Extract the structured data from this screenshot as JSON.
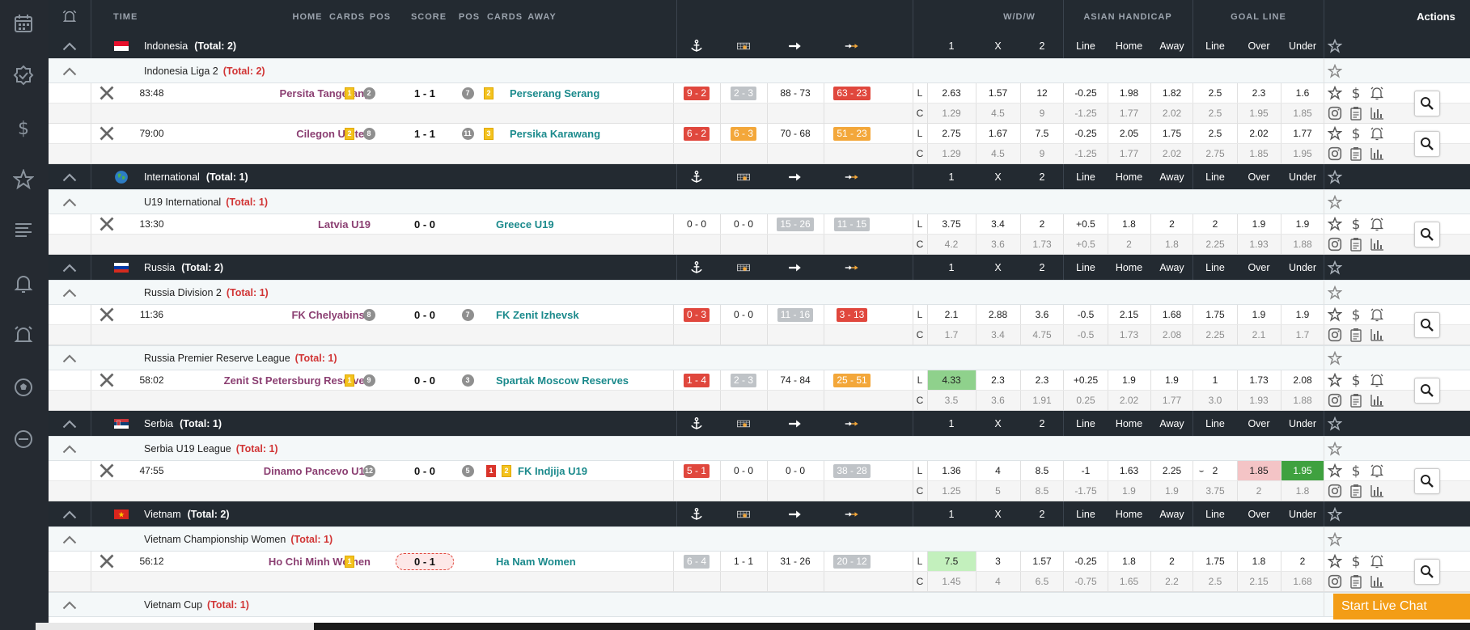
{
  "header": {
    "time": "TIME",
    "home": "HOME",
    "cards": "CARDS",
    "pos": "POS",
    "score": "SCORE",
    "pos2": "POS",
    "cards2": "CARDS",
    "away": "AWAY",
    "wdw": "W/D/W",
    "asian": "ASIAN HANDICAP",
    "goal": "GOAL LINE",
    "actions": "Actions"
  },
  "col_labels": {
    "one": "1",
    "x": "X",
    "two": "2",
    "line": "Line",
    "home": "Home",
    "away": "Away",
    "over": "Over",
    "under": "Under"
  },
  "row_labels": {
    "l": "L",
    "c": "C"
  },
  "countries": [
    {
      "name": "Indonesia",
      "total": "(Total: 2)",
      "flag": "indonesia"
    },
    {
      "name": "International",
      "total": "(Total: 1)",
      "flag": "globe"
    },
    {
      "name": "Russia",
      "total": "(Total: 2)",
      "flag": "russia"
    },
    {
      "name": "Serbia",
      "total": "(Total: 1)",
      "flag": "serbia"
    },
    {
      "name": "Vietnam",
      "total": "(Total: 2)",
      "flag": "vietnam"
    }
  ],
  "competitions": [
    {
      "name": "Indonesia Liga 2",
      "total": "(Total: 2)"
    },
    {
      "name": "U19 International",
      "total": "(Total: 1)"
    },
    {
      "name": "Russia Division 2",
      "total": "(Total: 1)"
    },
    {
      "name": "Russia Premier Reserve League",
      "total": "(Total: 1)"
    },
    {
      "name": "Serbia U19 League",
      "total": "(Total: 1)"
    },
    {
      "name": "Vietnam Championship Women",
      "total": "(Total: 1)"
    },
    {
      "name": "Vietnam Cup",
      "total": "(Total: 1)"
    }
  ],
  "matches": [
    {
      "time": "83:48",
      "home": "Persita Tangerang",
      "home_cards": [
        "1"
      ],
      "home_pos": "2",
      "score": "1 - 1",
      "away_pos": "7",
      "away_cards": [
        "2"
      ],
      "away": "Perserang Serang",
      "stat1": "9 - 2",
      "stat2": "2 - 3",
      "stat3": "88 - 73",
      "stat4": "63 - 23",
      "l": [
        "2.63",
        "1.57",
        "12",
        "-0.25",
        "1.98",
        "1.82",
        "2.5",
        "2.3",
        "1.6"
      ],
      "c": [
        "1.29",
        "4.5",
        "9",
        "-1.25",
        "1.77",
        "2.02",
        "2.5",
        "1.95",
        "1.85"
      ]
    },
    {
      "time": "79:00",
      "home": "Cilegon United",
      "home_cards": [
        "2"
      ],
      "home_pos": "8",
      "score": "1 - 1",
      "away_pos": "11",
      "away_cards": [
        "3"
      ],
      "away": "Persika Karawang",
      "stat1": "6 - 2",
      "stat2": "6 - 3",
      "stat3": "70 - 68",
      "stat4": "51 - 23",
      "l": [
        "2.75",
        "1.67",
        "7.5",
        "-0.25",
        "2.05",
        "1.75",
        "2.5",
        "2.02",
        "1.77"
      ],
      "c": [
        "1.29",
        "4.5",
        "9",
        "-1.25",
        "1.77",
        "2.02",
        "2.75",
        "1.85",
        "1.95"
      ]
    },
    {
      "time": "13:30",
      "home": "Latvia U19",
      "score": "0 - 0",
      "away": "Greece U19",
      "stat1": "0 - 0",
      "stat2": "0 - 0",
      "stat3": "15 - 26",
      "stat4": "11 - 15",
      "l": [
        "3.75",
        "3.4",
        "2",
        "+0.5",
        "1.8",
        "2",
        "2",
        "1.9",
        "1.9"
      ],
      "c": [
        "4.2",
        "3.6",
        "1.73",
        "+0.5",
        "2",
        "1.8",
        "2.25",
        "1.93",
        "1.88"
      ]
    },
    {
      "time": "11:36",
      "home": "FK Chelyabinsk",
      "home_pos": "8",
      "score": "0 - 0",
      "away_pos": "7",
      "away": "FK Zenit Izhevsk",
      "stat1": "0 - 3",
      "stat2": "0 - 0",
      "stat3": "11 - 16",
      "stat4": "3 - 13",
      "l": [
        "2.1",
        "2.88",
        "3.6",
        "-0.5",
        "2.15",
        "1.68",
        "1.75",
        "1.9",
        "1.9"
      ],
      "c": [
        "1.7",
        "3.4",
        "4.75",
        "-0.5",
        "1.73",
        "2.08",
        "2.25",
        "2.1",
        "1.7"
      ]
    },
    {
      "time": "58:02",
      "home": "Zenit St Petersburg Reserves",
      "home_cards": [
        "1"
      ],
      "home_pos": "9",
      "score": "0 - 0",
      "away_pos": "3",
      "away": "Spartak Moscow Reserves",
      "stat1": "1 - 4",
      "stat2": "2 - 3",
      "stat3": "74 - 84",
      "stat4": "25 - 51",
      "l": [
        "4.33",
        "2.3",
        "2.3",
        "+0.25",
        "1.9",
        "1.9",
        "1",
        "1.73",
        "2.08"
      ],
      "c": [
        "3.5",
        "3.6",
        "1.91",
        "0.25",
        "2.02",
        "1.77",
        "3.0",
        "1.93",
        "1.88"
      ]
    },
    {
      "time": "47:55",
      "home": "Dinamo Pancevo U19",
      "home_pos": "12",
      "score": "0 - 0",
      "away_pos": "5",
      "away_red": "1",
      "away_cards": [
        "2"
      ],
      "away": "FK Indjija U19",
      "stat1": "5 - 1",
      "stat2": "0 - 0",
      "stat3": "0 - 0",
      "stat4": "38 - 28",
      "l": [
        "1.36",
        "4",
        "8.5",
        "-1",
        "1.63",
        "2.25",
        "2",
        "1.85",
        "1.95"
      ],
      "c": [
        "1.25",
        "5",
        "8.5",
        "-1.75",
        "1.9",
        "1.9",
        "3.75",
        "2",
        "1.8"
      ]
    },
    {
      "time": "56:12",
      "home": "Ho Chi Minh Women",
      "home_cards": [
        "1"
      ],
      "score": "0 - 1",
      "away": "Ha Nam Women",
      "stat1": "6 - 4",
      "stat2": "1 - 1",
      "stat3": "31 - 26",
      "stat4": "20 - 12",
      "l": [
        "7.5",
        "3",
        "1.57",
        "-0.25",
        "1.8",
        "2",
        "1.75",
        "1.8",
        "2"
      ],
      "c": [
        "1.45",
        "4",
        "6.5",
        "-0.75",
        "1.65",
        "2.2",
        "2.5",
        "2.15",
        "1.68"
      ]
    }
  ],
  "live_chat": "Start Live Chat",
  "colors": {
    "dark": "#232a31",
    "home": "#8b3f72",
    "away": "#1b8a8c",
    "red": "#e0473d",
    "orange": "#f3a73a",
    "grey": "#bfc3c7",
    "chat": "#f39d16"
  }
}
